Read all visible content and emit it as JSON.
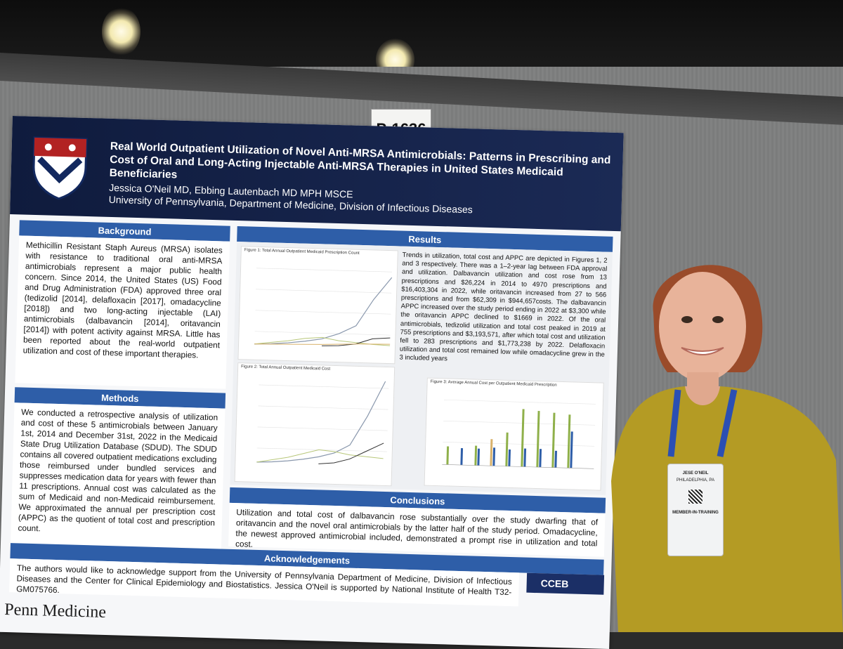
{
  "sign": {
    "label": "P-1636"
  },
  "poster": {
    "title": "Real World Outpatient Utilization of Novel Anti-MRSA Antimicrobials: Patterns in Prescribing and Cost of Oral and Long-Acting Injectable Anti-MRSA Therapies in United States Medicaid Beneficiaries",
    "authors": "Jessica O'Neil MD, Ebbing Lautenbach MD MPH MSCE",
    "affiliation": "University of Pennsylvania, Department of Medicine, Division of Infectious Diseases",
    "background_heading": "Background",
    "background_text": "Methicillin Resistant Staph Aureus (MRSA) isolates with resistance to traditional oral anti-MRSA antimicrobials represent a major public health concern. Since 2014, the United States (US) Food and Drug Administration (FDA) approved three oral (tedizolid [2014], delafloxacin [2017], omadacycline [2018]) and two long-acting injectable (LAI) antimicrobials (dalbavancin [2014], oritavancin [2014]) with potent activity against MRSA. Little has been reported about the real-world outpatient utilization and cost of these important therapies.",
    "methods_heading": "Methods",
    "methods_text": "We conducted a retrospective analysis of utilization and cost of these 5 antimicrobials between January 1st, 2014 and December 31st, 2022 in the Medicaid State Drug Utilization Database (SDUD). The SDUD contains all covered outpatient medications excluding those reimbursed under bundled services and suppresses medication data for years with fewer than 11 prescriptions. Annual cost was calculated as the sum of Medicaid and non-Medicaid reimbursement. We approximated the annual per prescription cost (APPC) as the quotient of total cost and prescription count.",
    "results_heading": "Results",
    "results_text": "Trends in utilization, total cost and APPC are depicted in Figures 1, 2 and 3 respectively. There was a 1–2-year lag between FDA approval and utilization. Dalbavancin utilization and cost rose from 13 prescriptions and $26,224 in 2014 to 4970 prescriptions and $16,403,304 in 2022, while oritavancin increased from 27 to 566 prescriptions and from $62,309 in $944,657costs. The dalbavancin APPC increased over the study period ending in 2022 at $3,300 while the oritavancin APPC declined to $1669 in 2022. Of the oral antimicrobials, tedizolid utilization and total cost peaked in 2019 at 755 prescriptions and $3,193,571, after which total cost and utilization fell to 283 prescriptions and $1,773,238 by 2022. Delafloxacin utilization and total cost remained low while omadacycline grew in the 3 included years",
    "fig1_caption": "Figure 1: Total Annual Outpatient Medicaid Prescription Count",
    "fig2_caption": "Figure 2: Total Annual Outpatient Medicaid Cost",
    "fig3_caption": "Figure 3: Average Annual Cost per Outpatient Medicaid Prescription",
    "conclusions_heading": "Conclusions",
    "conclusions_text": "Utilization and total cost of dalbavancin rose substantially over the study dwarfing that of oritavancin and the novel oral antimicrobials by the latter half of the study period. Omadacycline, the newest approved antimicrobial included, demonstrated a prompt rise in utilization and total cost.",
    "ack_heading": "Acknowledgements",
    "ack_text": "The authors would like to acknowledge support from the University of Pennsylvania Department of Medicine, Division of Infectious Diseases and the Center for Clinical Epidemiology and Biostatistics. Jessica O'Neil is supported by National Institute of Health T32-GM075766.",
    "footer_logo": "Penn Medicine",
    "cceb_logo": "CCEB"
  },
  "badge": {
    "name": "JESE O'NEIL",
    "org": "PHILADELPHIA, PA",
    "type": "MEMBER-IN-TRAINING"
  },
  "colors": {
    "header": "#0f1b3d",
    "section_bar": "#2e5ea8",
    "shirt": "#b49b24",
    "lanyard": "#2b4fb3"
  }
}
